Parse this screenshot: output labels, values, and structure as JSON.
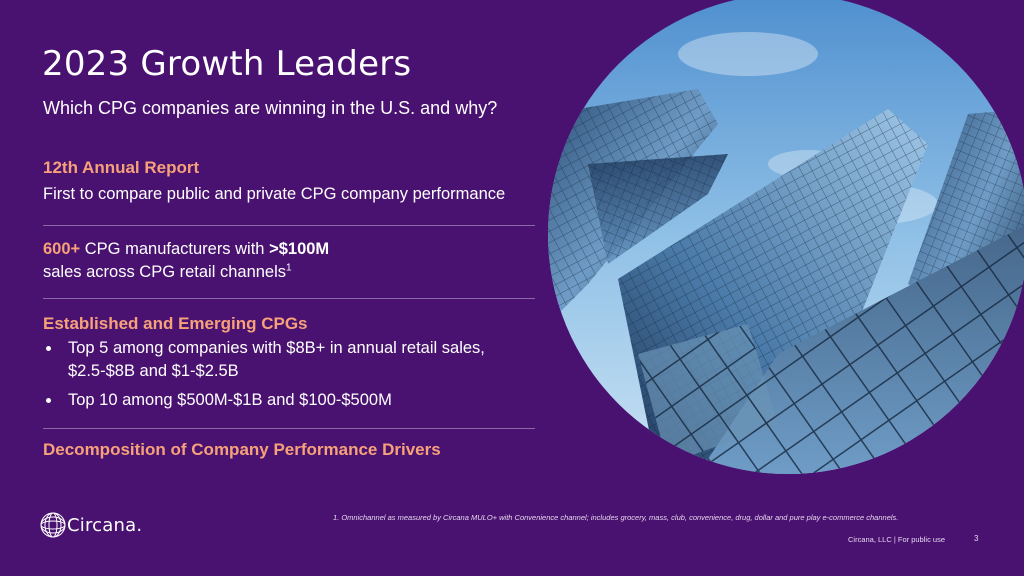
{
  "title": "2023 Growth Leaders",
  "subtitle": "Which CPG companies are winning in the U.S. and why?",
  "section1": {
    "heading": "12th Annual Report",
    "body": "First to compare public and private CPG company performance"
  },
  "section2": {
    "highlight": "600+",
    "text_a": " CPG manufacturers with ",
    "bold": ">$100M",
    "text_b": "sales across CPG retail channels",
    "footnote_ref": "1"
  },
  "section3": {
    "heading": "Established and Emerging CPGs",
    "bullets": [
      "Top 5 among companies with $8B+ in annual retail sales, $2.5-$8B and $1-$2.5B",
      "Top 10 among $500M-$1B and $100-$500M"
    ]
  },
  "section4": {
    "heading": "Decomposition of Company Performance Drivers"
  },
  "footnote": "1. Omnichannel as measured by Circana MULO+ with Convenience channel;  includes grocery, mass, club, convenience, drug, dollar and pure play e-commerce channels.",
  "footer": {
    "legal": "Circana, LLC | For public use",
    "page": "3"
  },
  "logo": {
    "text": "Circana."
  },
  "colors": {
    "background": "#4a1270",
    "accent": "#f7a17a"
  },
  "image": {
    "icon": "skyscrapers-photo"
  }
}
